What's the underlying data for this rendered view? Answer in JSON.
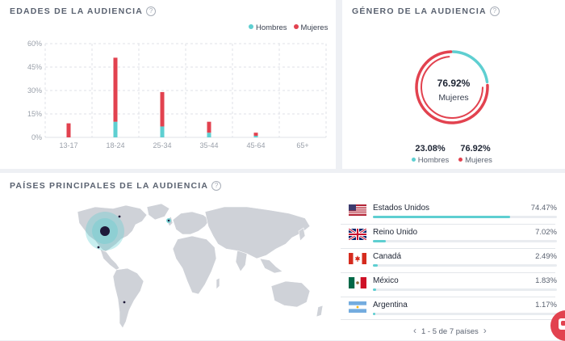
{
  "age_panel": {
    "title": "EDADES DE LA AUDIENCIA",
    "legend": {
      "male": "Hombres",
      "female": "Mujeres"
    }
  },
  "gender_panel": {
    "title": "GÉNERO DE LA AUDIENCIA",
    "center_value": "76.92%",
    "center_label": "Mujeres",
    "male": {
      "value": "23.08%",
      "label": "Hombres"
    },
    "female": {
      "value": "76.92%",
      "label": "Mujeres"
    }
  },
  "countries_panel": {
    "title": "PAÍSES PRINCIPALES DE LA AUDIENCIA",
    "countries": [
      {
        "name": "Estados Unidos",
        "pct": "74.47%",
        "fraction": 0.7447,
        "flag": "us-flag"
      },
      {
        "name": "Reino Unido",
        "pct": "7.02%",
        "fraction": 0.0702,
        "flag": "uk-flag"
      },
      {
        "name": "Canadá",
        "pct": "2.49%",
        "fraction": 0.0249,
        "flag": "canada-flag"
      },
      {
        "name": "México",
        "pct": "1.83%",
        "fraction": 0.0183,
        "flag": "mexico-flag"
      },
      {
        "name": "Argentina",
        "pct": "1.17%",
        "fraction": 0.0117,
        "flag": "argentina-flag"
      }
    ],
    "pager": {
      "text": "1 - 5 de 7 países",
      "prev": "‹",
      "next": "›"
    }
  },
  "colors": {
    "male": "#5ecfd1",
    "female": "#e2424f",
    "map_land": "#cfd2d8",
    "accent": "#e2424f"
  },
  "icons": {
    "help": "help-circle-icon",
    "chat": "chat-bubble-icon"
  },
  "chart_data": [
    {
      "type": "bar",
      "stacked": true,
      "title": "EDADES DE LA AUDIENCIA",
      "categories": [
        "13-17",
        "18-24",
        "25-34",
        "35-44",
        "45-64",
        "65+"
      ],
      "series": [
        {
          "name": "Hombres",
          "color": "#5ecfd1",
          "values": [
            0,
            10,
            7,
            3,
            1,
            0
          ]
        },
        {
          "name": "Mujeres",
          "color": "#e2424f",
          "values": [
            9,
            41,
            22,
            7,
            2,
            0
          ]
        }
      ],
      "ylim": [
        0,
        60
      ],
      "yticks": [
        "0%",
        "15%",
        "30%",
        "45%",
        "60%"
      ],
      "ytick_values": [
        0,
        15,
        30,
        45,
        60
      ],
      "grid": true,
      "legend": "top-right"
    },
    {
      "type": "pie",
      "donut": true,
      "title": "GÉNERO DE LA AUDIENCIA",
      "series": [
        {
          "name": "Hombres",
          "value": 23.08,
          "color": "#5ecfd1"
        },
        {
          "name": "Mujeres",
          "value": 76.92,
          "color": "#e2424f"
        }
      ]
    }
  ]
}
